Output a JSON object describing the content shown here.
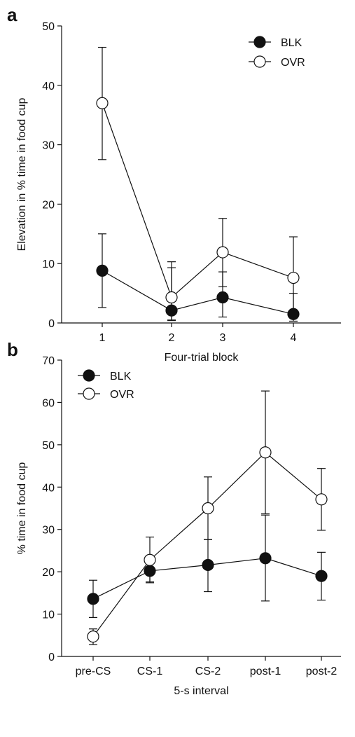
{
  "chart_data": [
    {
      "panel_label": "a",
      "type": "line",
      "categories": [
        "1",
        "2",
        "3",
        "4"
      ],
      "xlabel": "Four-trial block",
      "ylabel": "Elevation in % time in food cup",
      "ylim": [
        0,
        50
      ],
      "yticks": [
        "0",
        "10",
        "20",
        "30",
        "40",
        "50"
      ],
      "legend_position": "top-right",
      "series": [
        {
          "name": "BLK",
          "marker": "filled-circle",
          "color": "#111111",
          "values": [
            8.8,
            2.1,
            4.3,
            1.5
          ],
          "err_low": [
            2.6,
            0.5,
            1.0,
            0.3
          ],
          "err_high": [
            15.0,
            9.3,
            8.6,
            5.0
          ]
        },
        {
          "name": "OVR",
          "marker": "open-circle",
          "color": "#111111",
          "values": [
            37.0,
            4.3,
            11.9,
            7.6
          ],
          "err_low": [
            27.5,
            0.4,
            6.1,
            1.0
          ],
          "err_high": [
            46.4,
            10.3,
            17.6,
            14.5
          ]
        }
      ]
    },
    {
      "panel_label": "b",
      "type": "line",
      "categories": [
        "pre-CS",
        "CS-1",
        "CS-2",
        "post-1",
        "post-2"
      ],
      "xlabel": "5-s interval",
      "ylabel": "% time in food cup",
      "ylim": [
        0,
        70
      ],
      "yticks": [
        "0",
        "10",
        "20",
        "30",
        "40",
        "50",
        "60",
        "70"
      ],
      "legend_position": "top-left",
      "series": [
        {
          "name": "BLK",
          "marker": "filled-circle",
          "color": "#111111",
          "values": [
            13.6,
            20.2,
            21.6,
            23.2,
            19.0
          ],
          "err_low": [
            9.2,
            17.4,
            15.3,
            13.1,
            13.3
          ],
          "err_high": [
            18.0,
            23.0,
            27.6,
            33.4,
            24.6
          ]
        },
        {
          "name": "OVR",
          "marker": "open-circle",
          "color": "#111111",
          "values": [
            4.7,
            22.8,
            35.0,
            48.2,
            37.1
          ],
          "err_low": [
            2.8,
            17.6,
            27.6,
            33.7,
            29.8
          ],
          "err_high": [
            6.5,
            28.2,
            42.4,
            62.7,
            44.4
          ]
        }
      ]
    }
  ]
}
